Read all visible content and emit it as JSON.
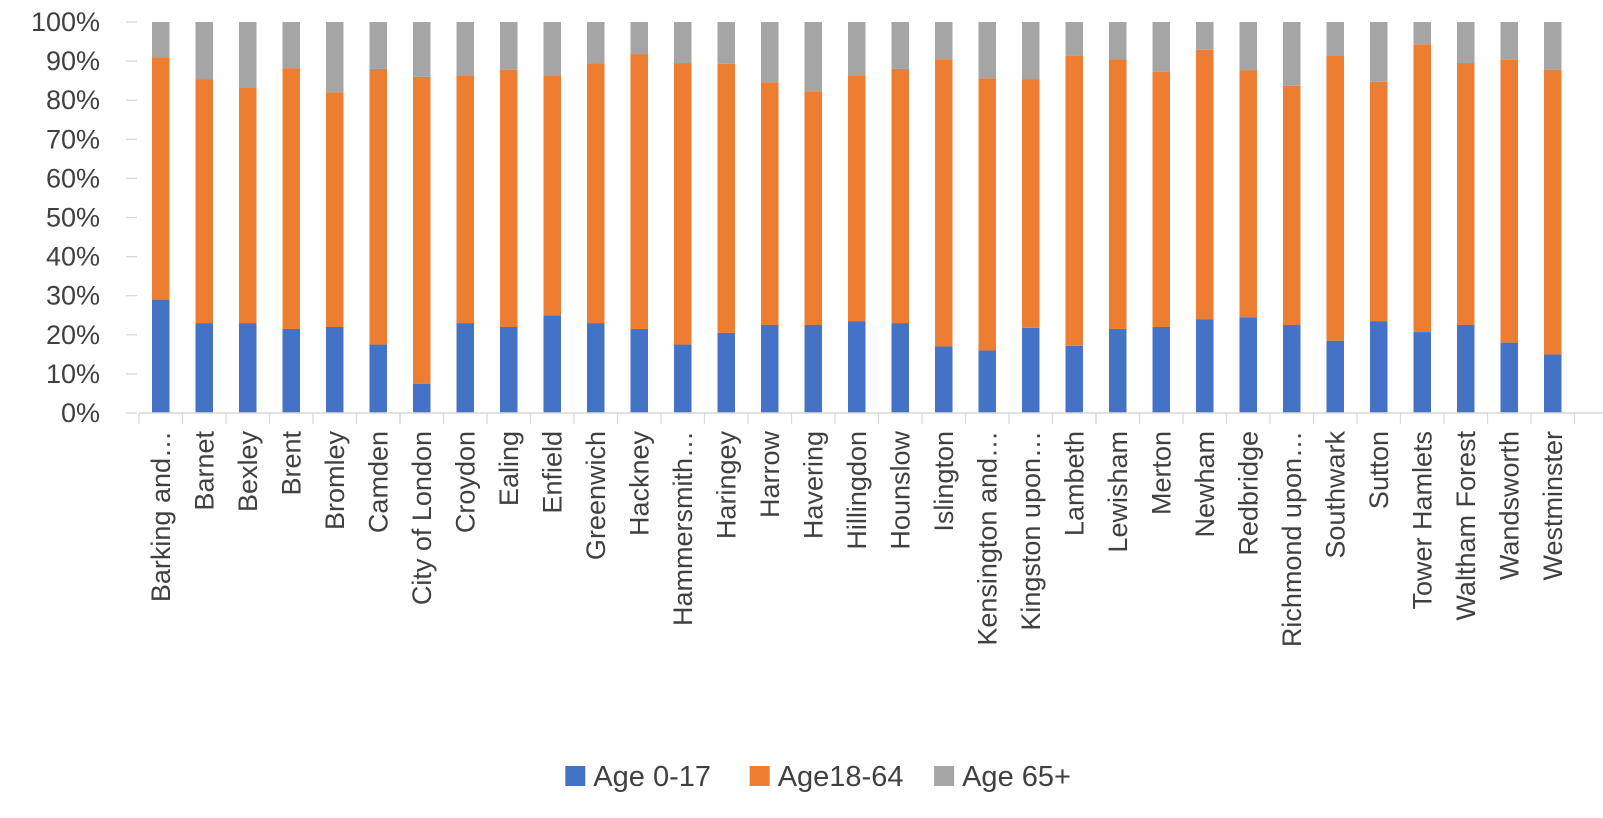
{
  "chart_data": {
    "type": "bar",
    "stacked": true,
    "orientation": "vertical",
    "categories": [
      "Barking and…",
      "Barnet",
      "Bexley",
      "Brent",
      "Bromley",
      "Camden",
      "City of London",
      "Croydon",
      "Ealing",
      "Enfield",
      "Greenwich",
      "Hackney",
      "Hammersmith…",
      "Haringey",
      "Harrow",
      "Havering",
      "Hillingdon",
      "Hounslow",
      "Islington",
      "Kensington and…",
      "Kingston upon…",
      "Lambeth",
      "Lewisham",
      "Merton",
      "Newham",
      "Redbridge",
      "Richmond upon…",
      "Southwark",
      "Sutton",
      "Tower Hamlets",
      "Waltham Forest",
      "Wandsworth",
      "Westminster"
    ],
    "series": [
      {
        "name": "Age 0-17",
        "color": "#4472C4",
        "values": [
          29,
          23,
          23,
          21.5,
          22,
          17.5,
          7.5,
          23,
          22,
          25,
          23,
          21.5,
          17.5,
          20.5,
          22.5,
          22.5,
          23.5,
          23,
          17,
          16,
          21.8,
          17.2,
          21.5,
          22,
          24,
          24.5,
          22.5,
          18.5,
          23.5,
          20.7,
          22.5,
          18,
          15
        ]
      },
      {
        "name": "Age18-64",
        "color": "#ED7D31",
        "values": [
          62,
          62.3,
          60.3,
          66.7,
          60,
          70.5,
          78.5,
          63.3,
          65.8,
          61.3,
          66.4,
          70.3,
          72,
          68.8,
          62.1,
          59.8,
          62.9,
          65,
          73.5,
          69.6,
          63.5,
          74.2,
          68.9,
          65.3,
          68.9,
          63.2,
          61.2,
          73,
          61.2,
          73.6,
          67,
          72.3,
          72.8
        ]
      },
      {
        "name": "Age 65+",
        "color": "#A5A5A5",
        "values": [
          9,
          14.7,
          16.7,
          11.8,
          18,
          12,
          14,
          13.7,
          12.2,
          13.7,
          10.6,
          8.2,
          10.5,
          10.7,
          15.4,
          17.7,
          13.6,
          12,
          9.5,
          14.4,
          14.7,
          8.6,
          9.6,
          12.7,
          7.1,
          12.3,
          16.3,
          8.5,
          15.3,
          5.7,
          10.5,
          9.7,
          12.2
        ]
      }
    ],
    "yticks": [
      "0%",
      "10%",
      "20%",
      "30%",
      "40%",
      "50%",
      "60%",
      "70%",
      "80%",
      "90%",
      "100%"
    ],
    "ylim": [
      0,
      100
    ],
    "grid": false,
    "legend_position": "bottom",
    "title": "",
    "xlabel": "",
    "ylabel": ""
  }
}
